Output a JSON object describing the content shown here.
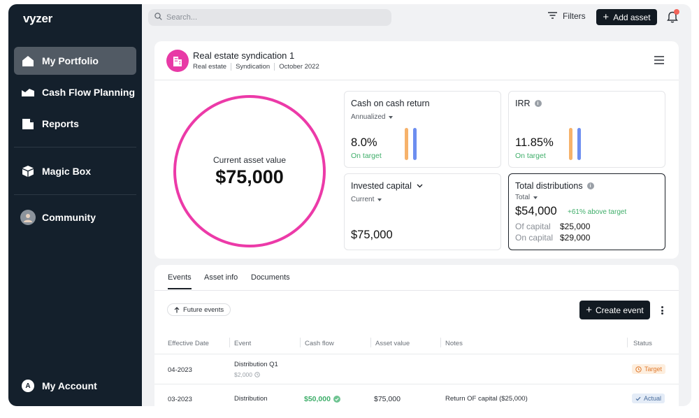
{
  "app": {
    "name": "vyzer"
  },
  "sidebar": {
    "items": [
      {
        "label": "My Portfolio",
        "icon": "home-icon"
      },
      {
        "label": "Cash Flow Planning",
        "icon": "chart-area-icon"
      },
      {
        "label": "Reports",
        "icon": "document-icon"
      },
      {
        "label": "Magic Box",
        "icon": "box-icon"
      },
      {
        "label": "Community",
        "icon": "avatar-icon"
      }
    ],
    "account": {
      "label": "My Account",
      "initial": "A"
    }
  },
  "topbar": {
    "search_placeholder": "Search...",
    "filters_label": "Filters",
    "add_asset_label": "Add asset"
  },
  "asset": {
    "title": "Real estate syndication 1",
    "meta": [
      "Real estate",
      "Syndication",
      "October 2022"
    ],
    "current_value_label": "Current asset value",
    "current_value": "$75,000"
  },
  "metrics": {
    "coc": {
      "title": "Cash on cash return",
      "sub": "Annualized",
      "value": "8.0%",
      "status": "On target"
    },
    "irr": {
      "title": "IRR",
      "value": "11.85%",
      "status": "On target"
    },
    "invested": {
      "title": "Invested capital",
      "sub": "Current",
      "value": "$75,000"
    },
    "distributions": {
      "title": "Total distributions",
      "sub": "Total",
      "value": "$54,000",
      "delta": "+61% above target",
      "of_capital_label": "Of capital",
      "of_capital_value": "$25,000",
      "on_capital_label": "On capital",
      "on_capital_value": "$29,000"
    }
  },
  "colors": {
    "accent_pink": "#ec3aa8",
    "bar_orange": "#f6b26b",
    "bar_blue": "#6d8ef0",
    "green": "#3fae6a"
  },
  "events": {
    "tabs": [
      "Events",
      "Asset info",
      "Documents"
    ],
    "future_label": "Future events",
    "create_label": "Create event",
    "columns": [
      "Effective Date",
      "Event",
      "Cash flow",
      "Asset value",
      "Notes",
      "Status"
    ],
    "rows": [
      {
        "date": "04-2023",
        "event": "Distribution Q1",
        "event_sub": "$2,000",
        "cash_flow": "",
        "asset_value": "",
        "notes": "",
        "status": "Target"
      },
      {
        "date": "03-2023",
        "event": "Distribution",
        "event_sub": "",
        "cash_flow": "$50,000",
        "asset_value": "$75,000",
        "notes": "Return OF capital ($25,000)",
        "status": "Actual"
      }
    ]
  }
}
